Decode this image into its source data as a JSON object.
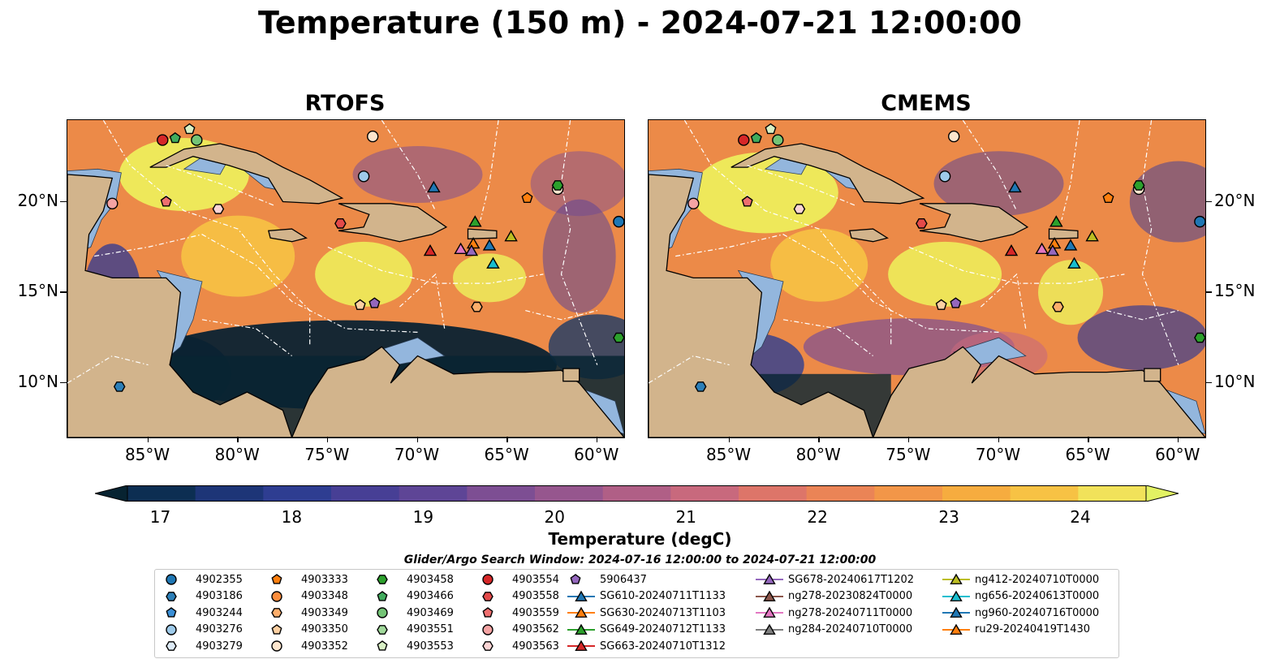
{
  "title": "Temperature (150 m) - 2024-07-21 12:00:00",
  "panels": [
    {
      "title": "RTOFS"
    },
    {
      "title": "CMEMS"
    }
  ],
  "axes": {
    "lon_labels": [
      "85°W",
      "80°W",
      "75°W",
      "70°W",
      "65°W",
      "60°W"
    ],
    "lat_labels": [
      "20°N",
      "15°N",
      "10°N"
    ],
    "lon_range": [
      -89.5,
      -58.5
    ],
    "lat_range": [
      7,
      24.5
    ]
  },
  "colorbar": {
    "label": "Temperature (degC)",
    "ticks": [
      "17",
      "18",
      "19",
      "20",
      "21",
      "22",
      "23",
      "24"
    ],
    "range": [
      16.75,
      24.5
    ],
    "colors": [
      "#072331",
      "#0c2e52",
      "#1d3577",
      "#2e3d91",
      "#473f95",
      "#5e4596",
      "#7d4e93",
      "#96568e",
      "#b05f86",
      "#c8697d",
      "#dd7569",
      "#ea8456",
      "#f29648",
      "#f6ac3f",
      "#f7c244",
      "#f1e25a",
      "#e2f263"
    ],
    "extend": "both"
  },
  "search_window": "Glider/Argo Search Window: 2024-07-16 12:00:00 to 2024-07-21 12:00:00",
  "legend": [
    [
      {
        "label": "4902355",
        "marker": "circle",
        "color": "#1f77b4"
      },
      {
        "label": "4903186",
        "marker": "hexagon",
        "color": "#2c7fb8"
      },
      {
        "label": "4903244",
        "marker": "pentagon",
        "color": "#3a8fd6"
      },
      {
        "label": "4903276",
        "marker": "circle",
        "color": "#9ecae9"
      },
      {
        "label": "4903279",
        "marker": "hexagon",
        "color": "#deebf7"
      }
    ],
    [
      {
        "label": "4903333",
        "marker": "pentagon",
        "color": "#ff7f0e"
      },
      {
        "label": "4903348",
        "marker": "circle",
        "color": "#fd8d3c"
      },
      {
        "label": "4903349",
        "marker": "hexagon",
        "color": "#fdae6b"
      },
      {
        "label": "4903350",
        "marker": "pentagon",
        "color": "#fdd0a2"
      },
      {
        "label": "4903352",
        "marker": "circle",
        "color": "#fee6ce"
      }
    ],
    [
      {
        "label": "4903458",
        "marker": "hexagon",
        "color": "#2ca02c"
      },
      {
        "label": "4903466",
        "marker": "pentagon",
        "color": "#41ab5d"
      },
      {
        "label": "4903469",
        "marker": "circle",
        "color": "#74c476"
      },
      {
        "label": "4903551",
        "marker": "hexagon",
        "color": "#a1d99b"
      },
      {
        "label": "4903553",
        "marker": "pentagon",
        "color": "#d9f0c5"
      }
    ],
    [
      {
        "label": "4903554",
        "marker": "circle",
        "color": "#d62728"
      },
      {
        "label": "4903558",
        "marker": "hexagon",
        "color": "#e34a4a"
      },
      {
        "label": "4903559",
        "marker": "pentagon",
        "color": "#ef6f6f"
      },
      {
        "label": "4903562",
        "marker": "circle",
        "color": "#f4a3a3"
      },
      {
        "label": "4903563",
        "marker": "hexagon",
        "color": "#fcd5d5"
      }
    ],
    [
      {
        "label": "5906437",
        "marker": "pentagon",
        "color": "#9467bd"
      },
      {
        "label": "SG610-20240711T1133",
        "marker": "triangle-line",
        "color": "#1f77b4"
      },
      {
        "label": "SG630-20240713T1103",
        "marker": "triangle-line",
        "color": "#ff7f0e"
      },
      {
        "label": "SG649-20240712T1133",
        "marker": "triangle-line",
        "color": "#2ca02c"
      },
      {
        "label": "SG663-20240710T1312",
        "marker": "triangle-line",
        "color": "#d62728"
      }
    ],
    [
      {
        "label": "SG678-20240617T1202",
        "marker": "triangle-line",
        "color": "#9467bd"
      },
      {
        "label": "ng278-20230824T0000",
        "marker": "triangle-line",
        "color": "#8c564b"
      },
      {
        "label": "ng278-20240711T0000",
        "marker": "triangle-line",
        "color": "#e377c2"
      },
      {
        "label": "ng284-20240710T0000",
        "marker": "triangle-line",
        "color": "#7f7f7f"
      }
    ],
    [
      {
        "label": "ng412-20240710T0000",
        "marker": "triangle-line",
        "color": "#bcbd22"
      },
      {
        "label": "ng656-20240613T0000",
        "marker": "triangle-line",
        "color": "#17becf"
      },
      {
        "label": "ng960-20240716T0000",
        "marker": "triangle-line",
        "color": "#1f77b4"
      },
      {
        "label": "ru29-20240419T1430",
        "marker": "triangle-line",
        "color": "#ff7f0e"
      }
    ]
  ],
  "observations": [
    {
      "id": "4903554",
      "lon": -84.2,
      "lat": 23.4,
      "marker": "circle",
      "color": "#d62728"
    },
    {
      "id": "4903466",
      "lon": -83.5,
      "lat": 23.5,
      "marker": "pentagon",
      "color": "#41ab5d"
    },
    {
      "id": "4903553",
      "lon": -82.7,
      "lat": 24.0,
      "marker": "pentagon",
      "color": "#d9f0c5"
    },
    {
      "id": "4903469",
      "lon": -82.3,
      "lat": 23.4,
      "marker": "circle",
      "color": "#74c476"
    },
    {
      "id": "4903352",
      "lon": -72.5,
      "lat": 23.6,
      "marker": "circle",
      "color": "#fee6ce"
    },
    {
      "id": "4903276",
      "lon": -73.0,
      "lat": 21.4,
      "marker": "circle",
      "color": "#9ecae9"
    },
    {
      "id": "SG610-20240711T1133",
      "lon": -69.1,
      "lat": 20.8,
      "marker": "triangle",
      "color": "#1f77b4"
    },
    {
      "id": "4903562",
      "lon": -87.0,
      "lat": 19.9,
      "marker": "circle",
      "color": "#f4a3a3"
    },
    {
      "id": "4903559",
      "lon": -84.0,
      "lat": 20.0,
      "marker": "pentagon",
      "color": "#ef6f6f"
    },
    {
      "id": "4903563",
      "lon": -81.1,
      "lat": 19.6,
      "marker": "hexagon",
      "color": "#fcd5d5"
    },
    {
      "id": "4903558",
      "lon": -74.3,
      "lat": 18.8,
      "marker": "hexagon",
      "color": "#e34a4a"
    },
    {
      "id": "4903333",
      "lon": -63.9,
      "lat": 20.2,
      "marker": "pentagon",
      "color": "#ff7f0e"
    },
    {
      "id": "4903352b",
      "lon": -62.2,
      "lat": 20.7,
      "marker": "circle",
      "color": "#fee6ce"
    },
    {
      "id": "4903458",
      "lon": -62.2,
      "lat": 20.9,
      "marker": "hexagon",
      "color": "#2ca02c"
    },
    {
      "id": "4902355",
      "lon": -58.8,
      "lat": 18.9,
      "marker": "circle",
      "color": "#1f77b4"
    },
    {
      "id": "SG649-20240712T1133",
      "lon": -66.8,
      "lat": 18.9,
      "marker": "triangle",
      "color": "#2ca02c"
    },
    {
      "id": "ng412-20240710T0000",
      "lon": -64.8,
      "lat": 18.1,
      "marker": "triangle",
      "color": "#bcbd22"
    },
    {
      "id": "ru29-20240419T1430",
      "lon": -66.9,
      "lat": 17.7,
      "marker": "triangle",
      "color": "#ff7f0e"
    },
    {
      "id": "ng960-20240716T0000",
      "lon": -66.0,
      "lat": 17.6,
      "marker": "triangle",
      "color": "#1f77b4"
    },
    {
      "id": "ng278-20240711T0000",
      "lon": -67.6,
      "lat": 17.4,
      "marker": "triangle",
      "color": "#e377c2"
    },
    {
      "id": "SG678-20240617T1202",
      "lon": -67.0,
      "lat": 17.3,
      "marker": "triangle",
      "color": "#9467bd"
    },
    {
      "id": "SG663-20240710T1312",
      "lon": -69.3,
      "lat": 17.3,
      "marker": "triangle",
      "color": "#d62728"
    },
    {
      "id": "ng656-20240613T0000",
      "lon": -65.8,
      "lat": 16.6,
      "marker": "triangle",
      "color": "#17becf"
    },
    {
      "id": "4903350",
      "lon": -73.2,
      "lat": 14.3,
      "marker": "pentagon",
      "color": "#fdd0a2"
    },
    {
      "id": "5906437",
      "lon": -72.4,
      "lat": 14.4,
      "marker": "pentagon",
      "color": "#9467bd"
    },
    {
      "id": "4903349",
      "lon": -66.7,
      "lat": 14.2,
      "marker": "hexagon",
      "color": "#fdae6b"
    },
    {
      "id": "4903186",
      "lon": -86.6,
      "lat": 9.8,
      "marker": "hexagon",
      "color": "#2c7fb8"
    },
    {
      "id": "4903458b",
      "lon": -58.8,
      "lat": 12.5,
      "marker": "hexagon",
      "color": "#2ca02c"
    }
  ],
  "map_colors": {
    "land": "#d2b48c",
    "shelf": "#93b6dd",
    "grid": "#ffffff"
  }
}
